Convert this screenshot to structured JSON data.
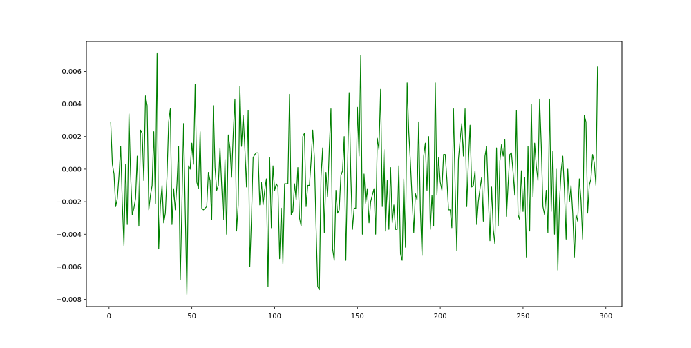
{
  "chart_data": {
    "type": "line",
    "title": "",
    "xlabel": "",
    "ylabel": "",
    "xlim": [
      -13.7,
      309.7
    ],
    "ylim": [
      -0.00844,
      0.00784
    ],
    "xticks": [
      0,
      50,
      100,
      150,
      200,
      250,
      300
    ],
    "xtick_labels": [
      "0",
      "50",
      "100",
      "150",
      "200",
      "250",
      "300"
    ],
    "yticks": [
      -0.008,
      -0.006,
      -0.004,
      -0.002,
      0.0,
      0.002,
      0.004,
      0.006
    ],
    "ytick_labels": [
      "−0.008",
      "−0.006",
      "−0.004",
      "−0.002",
      "0.000",
      "0.002",
      "0.004",
      "0.006"
    ],
    "grid": false,
    "legend": "none",
    "line_color": "#008000",
    "x_start": 1,
    "series": [
      {
        "values": [
          0.0029,
          0.0003,
          -0.0003,
          -0.0023,
          -0.0018,
          -0.0004,
          0.0014,
          -0.0021,
          -0.0047,
          0.0003,
          -0.0034,
          0.0034,
          -0.0003,
          -0.0028,
          -0.0024,
          -0.0018,
          0.0008,
          -0.0035,
          0.0024,
          0.0022,
          -0.0007,
          0.0045,
          0.0039,
          -0.0025,
          -0.0016,
          -0.001,
          0.0023,
          -0.0021,
          0.0071,
          -0.0049,
          -0.0022,
          -0.001,
          -0.0033,
          -0.0027,
          -0.0004,
          0.0029,
          0.0037,
          -0.0034,
          -0.0012,
          -0.0025,
          -0.0009,
          0.0014,
          -0.0068,
          -0.0022,
          0.0028,
          -0.0025,
          -0.0077,
          0.0002,
          0.0,
          0.0016,
          0.0003,
          0.0052,
          -0.0008,
          -0.0012,
          0.0023,
          -0.0024,
          -0.0025,
          -0.0024,
          -0.0023,
          -0.0002,
          -0.0007,
          -0.0031,
          0.0039,
          0.0001,
          -0.0013,
          -0.001,
          0.0013,
          -0.001,
          -0.0031,
          0.0006,
          -0.004,
          0.0021,
          0.0013,
          -0.0005,
          0.0022,
          0.0043,
          -0.0038,
          -0.0022,
          0.0051,
          0.0014,
          0.0033,
          0.0013,
          -0.0011,
          0.0036,
          -0.006,
          -0.003,
          0.0007,
          0.0009,
          0.001,
          0.001,
          -0.0022,
          -0.0008,
          -0.0022,
          -0.0013,
          -0.0006,
          -0.0072,
          0.0007,
          -0.0036,
          0.0002,
          -0.0013,
          -0.0009,
          -0.0011,
          -0.0055,
          -0.0024,
          -0.0058,
          -0.0009,
          -0.0009,
          -0.0009,
          0.0046,
          -0.0028,
          -0.0026,
          -0.0009,
          -0.0019,
          0.0001,
          -0.003,
          -0.0035,
          0.002,
          0.0022,
          -0.0023,
          -0.001,
          -0.001,
          0.0005,
          0.0024,
          0.0007,
          -0.0035,
          -0.0072,
          -0.0074,
          -0.0005,
          0.0013,
          -0.0039,
          -0.0002,
          -0.0017,
          0.0013,
          0.0037,
          -0.0049,
          -0.0056,
          -0.0013,
          -0.0027,
          -0.0025,
          -0.0004,
          -0.0001,
          0.002,
          -0.0056,
          -0.0001,
          0.0047,
          -0.0004,
          -0.0037,
          -0.0024,
          -0.0024,
          0.0038,
          0.0008,
          0.007,
          -0.004,
          -0.0003,
          -0.0021,
          -0.0012,
          -0.0033,
          -0.002,
          -0.0016,
          -0.0012,
          -0.004,
          0.0019,
          0.0012,
          0.0049,
          -0.0023,
          0.0012,
          -0.0038,
          -0.0007,
          -0.0037,
          0.0001,
          -0.0033,
          -0.0022,
          -0.0037,
          -0.0037,
          0.0002,
          -0.0052,
          -0.0056,
          -0.0006,
          -0.0048,
          0.0053,
          0.0023,
          0.0004,
          -0.0018,
          -0.0039,
          -0.0015,
          -0.0019,
          0.0029,
          -0.0025,
          -0.0053,
          0.0008,
          0.0016,
          -0.0013,
          0.002,
          -0.0037,
          -0.0016,
          -0.0035,
          0.0053,
          -0.0016,
          0.0007,
          -0.0008,
          -0.0013,
          0.0009,
          0.0009,
          -0.0006,
          -0.0025,
          -0.0025,
          -0.0036,
          0.0037,
          -0.0011,
          -0.005,
          0.0006,
          0.0018,
          0.0028,
          0.0008,
          0.0037,
          -0.0023,
          0.0004,
          0.0027,
          -0.0011,
          -0.001,
          -0.0001,
          -0.0034,
          -0.002,
          -0.0012,
          -0.0005,
          -0.0032,
          0.0008,
          0.0014,
          -0.0016,
          -0.0044,
          -0.0011,
          -0.0037,
          -0.0046,
          0.0013,
          -0.0035,
          0.0005,
          0.0015,
          0.0008,
          0.0018,
          -0.0029,
          -0.0009,
          0.0009,
          0.001,
          -0.0002,
          -0.0016,
          0.0036,
          -0.0028,
          -0.0031,
          -0.0001,
          -0.0026,
          -0.0005,
          -0.0054,
          0.0014,
          -0.0038,
          0.004,
          -0.0017,
          0.0016,
          0.0002,
          -0.0007,
          0.0043,
          0.0015,
          -0.0023,
          -0.0028,
          -0.0013,
          -0.0039,
          0.0043,
          -0.0026,
          0.0011,
          -0.004,
          0.0,
          -0.0062,
          -0.002,
          -0.0001,
          0.0008,
          -0.0013,
          -0.0043,
          0.0,
          -0.002,
          -0.001,
          -0.0027,
          -0.0054,
          -0.0028,
          -0.0032,
          -0.0006,
          -0.0019,
          -0.0043,
          0.0033,
          0.0029,
          -0.0027,
          -0.001,
          -0.0006,
          0.0009,
          0.0004,
          -0.001,
          0.0063
        ]
      }
    ]
  }
}
